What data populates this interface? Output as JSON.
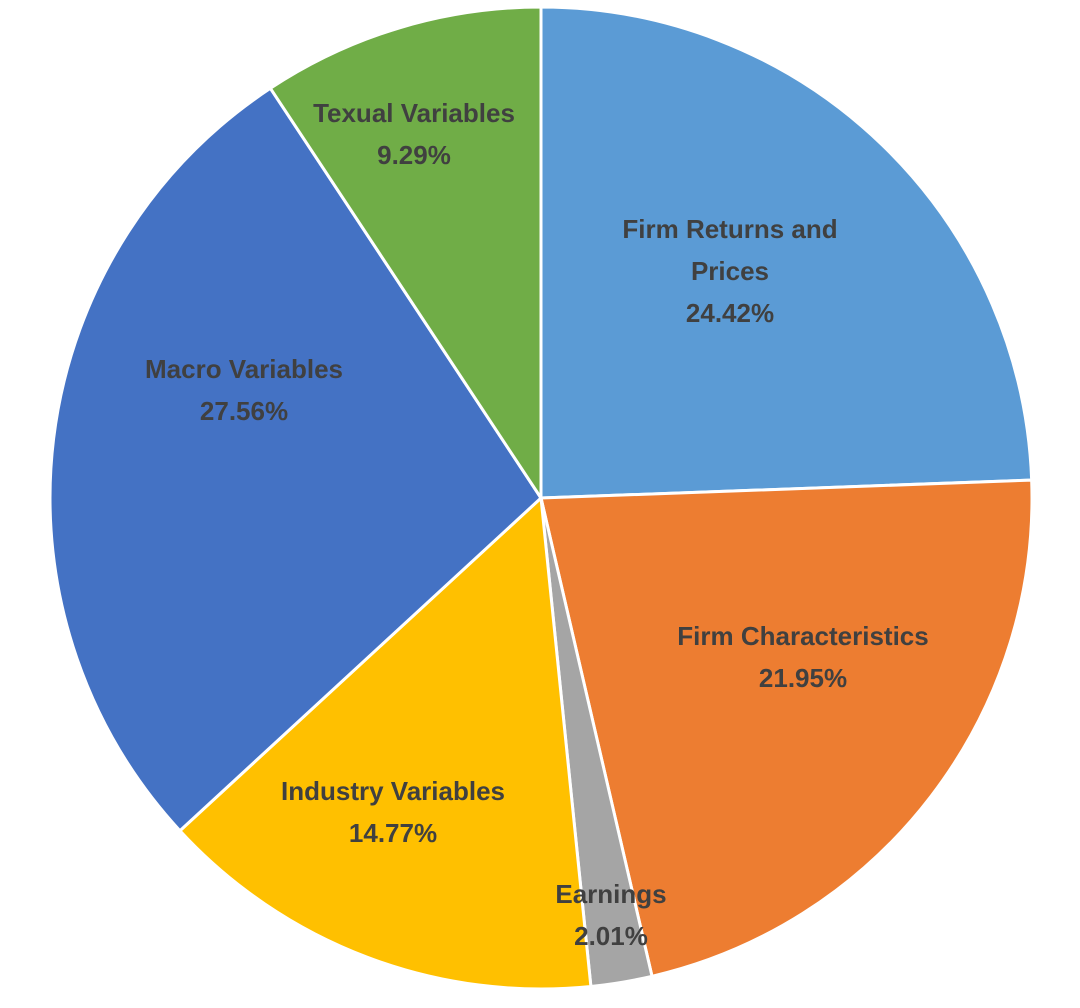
{
  "chart_data": {
    "type": "pie",
    "title": "",
    "start_angle_deg": 0,
    "direction": "clockwise",
    "slices": [
      {
        "label_lines": [
          "Firm Returns and",
          "Prices"
        ],
        "value": 24.42,
        "value_label": "24.42%",
        "color": "#5B9BD5"
      },
      {
        "label_lines": [
          "Firm Characteristics"
        ],
        "value": 21.95,
        "value_label": "21.95%",
        "color": "#ED7D31"
      },
      {
        "label_lines": [
          "Earnings"
        ],
        "value": 2.01,
        "value_label": "2.01%",
        "color": "#A5A5A5"
      },
      {
        "label_lines": [
          "Industry Variables"
        ],
        "value": 14.77,
        "value_label": "14.77%",
        "color": "#FFC000"
      },
      {
        "label_lines": [
          "Macro Variables"
        ],
        "value": 27.56,
        "value_label": "27.56%",
        "color": "#4472C4"
      },
      {
        "label_lines": [
          "Texual Variables"
        ],
        "value": 9.29,
        "value_label": "9.29%",
        "color": "#70AD47"
      }
    ],
    "legend": "none",
    "label_color": "#404040"
  }
}
